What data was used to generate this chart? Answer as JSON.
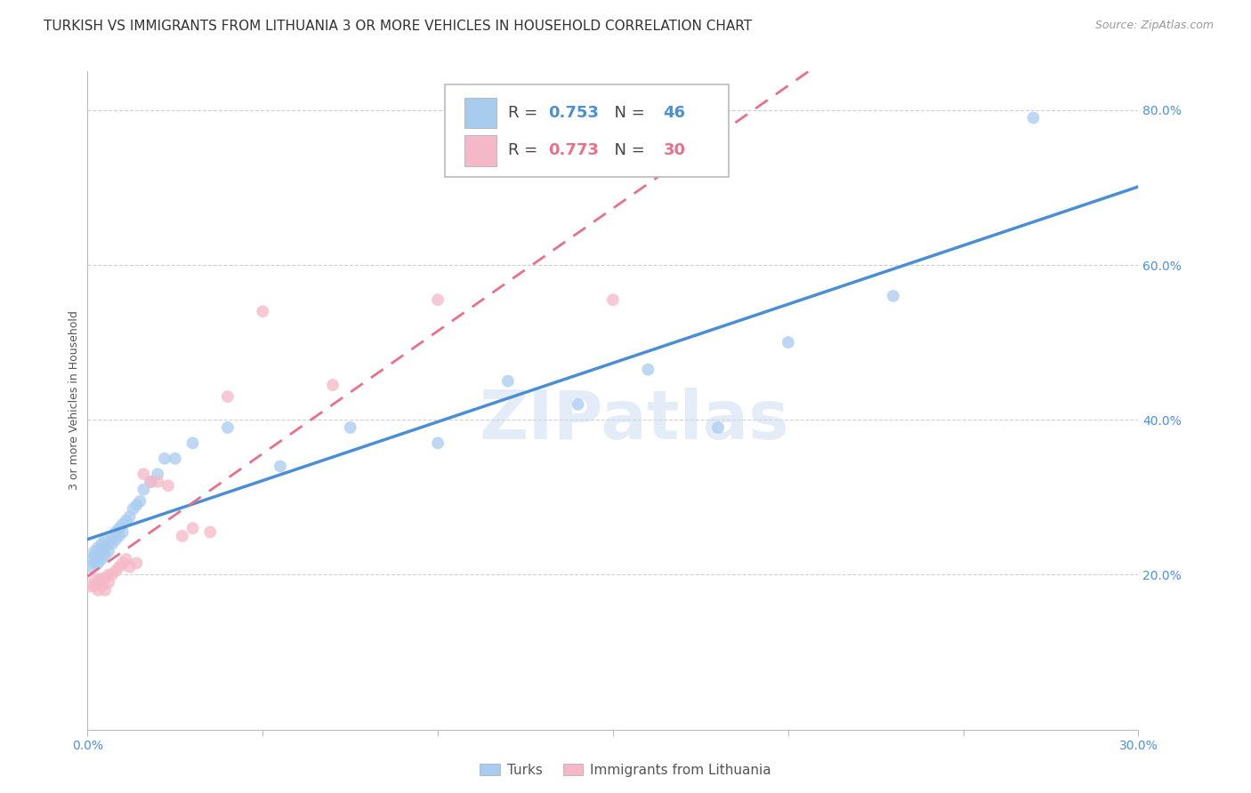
{
  "title": "TURKISH VS IMMIGRANTS FROM LITHUANIA 3 OR MORE VEHICLES IN HOUSEHOLD CORRELATION CHART",
  "source": "Source: ZipAtlas.com",
  "ylabel": "3 or more Vehicles in Household",
  "x_min": 0.0,
  "x_max": 0.3,
  "y_min": 0.0,
  "y_max": 0.85,
  "x_ticks": [
    0.0,
    0.05,
    0.1,
    0.15,
    0.2,
    0.25,
    0.3
  ],
  "y_ticks_right": [
    0.2,
    0.4,
    0.6,
    0.8
  ],
  "y_tick_labels_right": [
    "20.0%",
    "40.0%",
    "60.0%",
    "80.0%"
  ],
  "turks_color": "#A8CCF0",
  "lithuania_color": "#F5B8C8",
  "turks_R": 0.753,
  "turks_N": 46,
  "lithuania_R": 0.773,
  "lithuania_N": 30,
  "turks_line_color": "#4A8FD4",
  "lithuania_line_color": "#E8708A",
  "watermark": "ZIPatlas",
  "turks_scatter_x": [
    0.001,
    0.001,
    0.002,
    0.002,
    0.002,
    0.003,
    0.003,
    0.003,
    0.004,
    0.004,
    0.004,
    0.005,
    0.005,
    0.005,
    0.006,
    0.006,
    0.007,
    0.007,
    0.008,
    0.008,
    0.009,
    0.009,
    0.01,
    0.01,
    0.011,
    0.012,
    0.013,
    0.014,
    0.015,
    0.016,
    0.018,
    0.02,
    0.022,
    0.025,
    0.03,
    0.04,
    0.055,
    0.075,
    0.1,
    0.12,
    0.14,
    0.16,
    0.18,
    0.2,
    0.23,
    0.27
  ],
  "turks_scatter_y": [
    0.21,
    0.22,
    0.215,
    0.225,
    0.23,
    0.215,
    0.225,
    0.235,
    0.22,
    0.23,
    0.24,
    0.225,
    0.235,
    0.245,
    0.23,
    0.24,
    0.24,
    0.25,
    0.245,
    0.255,
    0.25,
    0.26,
    0.255,
    0.265,
    0.27,
    0.275,
    0.285,
    0.29,
    0.295,
    0.31,
    0.32,
    0.33,
    0.35,
    0.35,
    0.37,
    0.39,
    0.34,
    0.39,
    0.37,
    0.45,
    0.42,
    0.465,
    0.39,
    0.5,
    0.56,
    0.79
  ],
  "lithuania_scatter_x": [
    0.001,
    0.002,
    0.002,
    0.003,
    0.003,
    0.004,
    0.004,
    0.005,
    0.005,
    0.006,
    0.006,
    0.007,
    0.008,
    0.009,
    0.01,
    0.011,
    0.012,
    0.014,
    0.016,
    0.018,
    0.02,
    0.023,
    0.027,
    0.03,
    0.035,
    0.04,
    0.05,
    0.07,
    0.1,
    0.15
  ],
  "lithuania_scatter_y": [
    0.185,
    0.185,
    0.195,
    0.18,
    0.19,
    0.185,
    0.195,
    0.18,
    0.195,
    0.19,
    0.2,
    0.2,
    0.205,
    0.21,
    0.215,
    0.22,
    0.21,
    0.215,
    0.33,
    0.32,
    0.32,
    0.315,
    0.25,
    0.26,
    0.255,
    0.43,
    0.54,
    0.445,
    0.555,
    0.555
  ],
  "background_color": "#FFFFFF",
  "grid_color": "#D0D0D0",
  "title_fontsize": 11,
  "axis_label_fontsize": 9,
  "tick_fontsize": 10
}
